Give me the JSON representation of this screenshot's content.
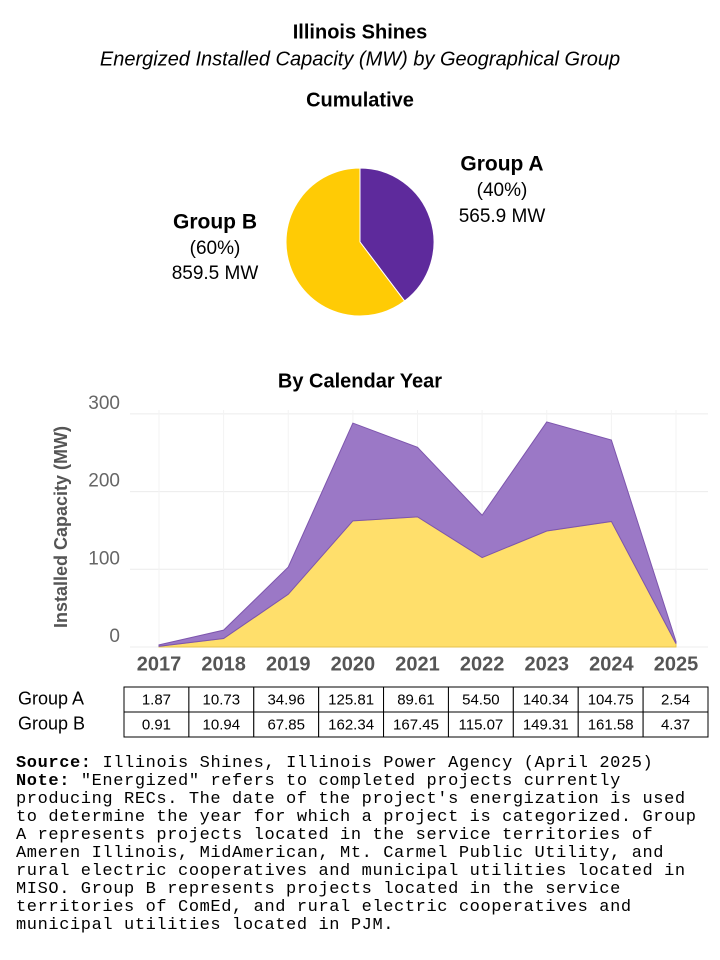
{
  "title": "Illinois Shines",
  "subtitle": "Energized Installed Capacity (MW) by Geographical Group",
  "chart_data": [
    {
      "type": "pie",
      "title": "Cumulative",
      "categories": [
        "Group A",
        "Group B"
      ],
      "values": [
        565.9,
        859.5
      ],
      "value_labels": [
        "565.9 MW",
        "859.5 MW"
      ],
      "percents": [
        40,
        60
      ],
      "percent_labels": [
        "(40%)",
        "(60%)"
      ],
      "colors": [
        "#5e2a9c",
        "#ffcb05"
      ]
    },
    {
      "type": "area",
      "stacked": true,
      "title": "By Calendar Year",
      "y_label": "Installed Capacity (MW)",
      "categories": [
        "2017",
        "2018",
        "2019",
        "2020",
        "2021",
        "2022",
        "2023",
        "2024",
        "2025"
      ],
      "series": [
        {
          "name": "Group A",
          "color": "#9b78c6",
          "values": [
            1.87,
            10.73,
            34.96,
            125.81,
            89.61,
            54.5,
            140.34,
            104.75,
            2.54
          ],
          "value_labels": [
            "1.87",
            "10.73",
            "34.96",
            "125.81",
            "89.61",
            "54.50",
            "140.34",
            "104.75",
            "2.54"
          ]
        },
        {
          "name": "Group B",
          "color": "#ffdf6b",
          "values": [
            0.91,
            10.94,
            67.85,
            162.34,
            167.45,
            115.07,
            149.31,
            161.58,
            4.37
          ],
          "value_labels": [
            "0.91",
            "10.94",
            "67.85",
            "162.34",
            "167.45",
            "115.07",
            "149.31",
            "161.58",
            "4.37"
          ]
        }
      ],
      "ylim": [
        0,
        305
      ],
      "yticks": [
        0,
        100,
        200,
        300
      ],
      "grid": true
    }
  ],
  "source": {
    "label": "Source:",
    "text": "Illinois Shines, Illinois Power Agency (April 2025)"
  },
  "note": {
    "label": "Note:",
    "text": "\"Energized\" refers to completed projects currently producing RECs. The date of the project's energization is used to determine the year for which a project is categorized. Group A represents projects located in the service territories of Ameren Illinois, MidAmerican, Mt. Carmel Public Utility, and rural electric cooperatives and municipal utilities located in MISO. Group B represents projects located in the service territories of ComEd, and rural electric cooperatives and municipal utilities located in PJM."
  }
}
